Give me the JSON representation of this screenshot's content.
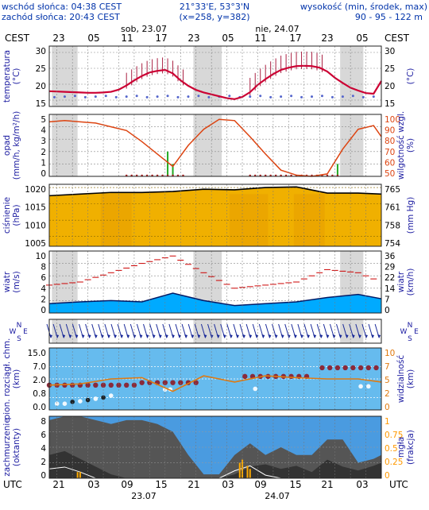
{
  "header": {
    "sunrise": "wschód słońca: 04:38 CEST",
    "sunset": "zachód słońca: 20:43 CEST",
    "coords": "21°33'E, 53°3'N",
    "grid": "(x=258, y=382)",
    "altitude_label": "wysokość (min, środek, max)",
    "altitude_values": "90 - 95 - 122 m"
  },
  "top_axis": {
    "tz": "CEST",
    "hours": [
      "23",
      "05",
      "11",
      "17",
      "23",
      "05",
      "11",
      "17",
      "23",
      "05"
    ],
    "day1": "sob, 23.07",
    "day2": "nie, 24.07"
  },
  "bottom_axis": {
    "tz": "UTC",
    "hours": [
      "21",
      "03",
      "09",
      "15",
      "21",
      "03",
      "09",
      "15",
      "21",
      "03"
    ],
    "day1": "23.07",
    "day2": "24.07"
  },
  "panels": {
    "temperature": {
      "left_label": [
        "temperatura",
        "(°C)"
      ],
      "right_label": [
        "(°C)"
      ],
      "ticks": [
        "30",
        "25",
        "20",
        "15"
      ]
    },
    "precipitation": {
      "left_label": [
        "opad",
        "(mm/h, kg/m²/h)"
      ],
      "right_label": [
        "wilgotność wzgl.",
        "(%)"
      ],
      "left_ticks": [
        "5",
        "4",
        "3",
        "2",
        "1",
        "0"
      ],
      "right_ticks": [
        "100",
        "90",
        "80",
        "70",
        "60",
        "50"
      ]
    },
    "pressure": {
      "left_label": [
        "ciśnienie",
        "(hPa)"
      ],
      "right_label": [
        "(mm Hg)"
      ],
      "left_ticks": [
        "1020",
        "1015",
        "1010",
        "1005"
      ],
      "right_ticks": [
        "765",
        "761",
        "758",
        "754"
      ]
    },
    "wind": {
      "left_label": [
        "wiatr",
        "(m/s)"
      ],
      "right_label": [
        "wiatr",
        "(km/h)"
      ],
      "left_ticks": [
        "10",
        "8",
        "6",
        "4",
        "2",
        "0"
      ],
      "right_ticks": [
        "36",
        "29",
        "22",
        "14",
        "7",
        "0"
      ]
    },
    "direction": {
      "compass": [
        "N",
        "W",
        "E",
        "S"
      ]
    },
    "visibility": {
      "left_label": [
        "pion. rozciągł. chm.",
        "(km)"
      ],
      "right_label": [
        "widzialność",
        "(km)"
      ],
      "left_ticks": [
        "15.0",
        "7.0",
        "2.0",
        "0.8",
        "0.0"
      ],
      "right_ticks": [
        "10",
        "7",
        "5",
        "2",
        "0"
      ]
    },
    "clouds": {
      "left_label": [
        "zachmurzenie",
        "(oktanty)"
      ],
      "right_label": [
        "mgła",
        "(frakcja)"
      ],
      "left_ticks": [
        "8",
        "6",
        "4",
        "2",
        "0"
      ],
      "right_ticks": [
        "1",
        "0.75",
        "0.5",
        "0.25",
        "0"
      ]
    }
  },
  "colors": {
    "label_blue": "#1a1aa0",
    "temp_line": "#cc0033",
    "precip_bar": "#22aa22",
    "humidity_line": "#dd4411",
    "pressure_fill": "#f0b000",
    "wind_fill": "#00aaff",
    "vis_bg": "#66bbee",
    "cloud_fill": "#555555"
  },
  "chart_data": [
    {
      "type": "line",
      "name": "temperatura",
      "x_hours": [
        0,
        3,
        6,
        9,
        12,
        15,
        18,
        21,
        24,
        27,
        30,
        33,
        36,
        39,
        42,
        45,
        48,
        51,
        54,
        57,
        60,
        63,
        66,
        69,
        72,
        75,
        78,
        81,
        84,
        87,
        90,
        93,
        96,
        99,
        102,
        105,
        108,
        111,
        114,
        117,
        120,
        123,
        126,
        129
      ],
      "temperature": [
        17.8,
        17.7,
        17.6,
        17.5,
        17.4,
        17.3,
        17.3,
        17.4,
        17.6,
        18.3,
        19.6,
        21.2,
        22.6,
        23.7,
        24.2,
        24.5,
        23.4,
        21.2,
        19.5,
        18.2,
        17.4,
        16.8,
        16.2,
        15.6,
        15.3,
        16.0,
        17.5,
        19.8,
        21.6,
        23.2,
        24.5,
        25.2,
        25.7,
        25.8,
        25.7,
        25.2,
        24.0,
        22.0,
        20.4,
        18.9,
        18.0,
        17.2,
        17.0,
        21.0
      ],
      "ylim": [
        13,
        32
      ]
    },
    {
      "type": "line",
      "name": "wilgotność wzgl.",
      "x_hours": [
        0,
        6,
        12,
        18,
        24,
        30,
        36,
        42,
        48,
        54,
        60,
        66,
        72,
        78,
        84,
        90,
        96,
        102,
        108,
        114,
        120,
        126,
        129
      ],
      "humidity": [
        94,
        95,
        94,
        93,
        90,
        87,
        78,
        68,
        58,
        75,
        88,
        96,
        95,
        82,
        68,
        55,
        51,
        50,
        52,
        72,
        88,
        91,
        82
      ],
      "precip_events": [
        {
          "hour": 46,
          "value": 2.0
        },
        {
          "hour": 48,
          "value": 1.0
        },
        {
          "hour": 112,
          "value": 1.0
        }
      ],
      "ylim": [
        50,
        100
      ]
    },
    {
      "type": "area",
      "name": "ciśnienie",
      "x_hours": [
        0,
        12,
        24,
        36,
        48,
        60,
        72,
        84,
        96,
        108,
        120,
        129
      ],
      "pressure_hPa": [
        1017.5,
        1018.0,
        1018.5,
        1018.5,
        1018.8,
        1019.5,
        1019.3,
        1020.0,
        1020.2,
        1018.3,
        1018.3,
        1018.0
      ],
      "ylim": [
        1002,
        1021
      ]
    },
    {
      "type": "area",
      "name": "wiatr",
      "x_hours": [
        0,
        12,
        24,
        36,
        48,
        60,
        72,
        84,
        96,
        108,
        120,
        129
      ],
      "wind_ms": [
        1.5,
        1.8,
        2.0,
        1.8,
        3.2,
        2.0,
        1.2,
        1.5,
        1.8,
        2.5,
        3.0,
        2.3
      ],
      "gusts_ms": [
        4.5,
        5.0,
        6.5,
        8.0,
        9.2,
        6.5,
        4.0,
        4.5,
        5.0,
        7.0,
        6.5,
        5.0
      ],
      "ylim": [
        0,
        10
      ]
    },
    {
      "type": "line",
      "name": "widzialność",
      "x_hours": [
        0,
        12,
        24,
        36,
        48,
        60,
        72,
        84,
        96,
        108,
        120,
        129
      ],
      "visibility_km": [
        4.0,
        4.2,
        5.0,
        5.2,
        3.0,
        5.5,
        4.5,
        5.5,
        5.2,
        5.0,
        5.0,
        4.5
      ],
      "ylim": [
        0,
        10
      ]
    },
    {
      "type": "area",
      "name": "zachmurzenie",
      "x_hours": [
        0,
        6,
        12,
        18,
        24,
        30,
        36,
        42,
        48,
        54,
        60,
        66,
        72,
        78,
        84,
        90,
        96,
        102,
        108,
        114,
        120,
        126,
        129
      ],
      "high_oktas": [
        7.5,
        8,
        8,
        7.5,
        7,
        7.5,
        7.5,
        7,
        6,
        3,
        0.5,
        0.5,
        3,
        4.5,
        3,
        4,
        3,
        3,
        5,
        5,
        2,
        2.5,
        3
      ],
      "fog_fraction": [
        0.15,
        0.18,
        0.1,
        0,
        0,
        0,
        0,
        0,
        0,
        0,
        0,
        0,
        0.12,
        0.2,
        0.05,
        0,
        0,
        0,
        0,
        0,
        0,
        0,
        0
      ]
    }
  ]
}
